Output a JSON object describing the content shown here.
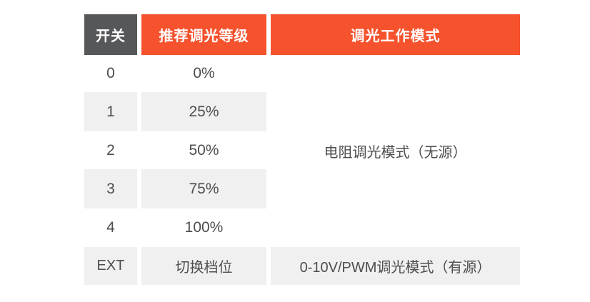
{
  "colors": {
    "header_dark": "#565759",
    "header_accent": "#F5522D",
    "row_alt": "#F0F0F0",
    "header_text": "#FFFFFF",
    "body_text": "#4D4D4D",
    "page_bg": "#FFFFFF"
  },
  "table": {
    "headers": {
      "switch": "开关",
      "level": "推荐调光等级",
      "mode": "调光工作模式"
    },
    "rows": [
      {
        "switch": "0",
        "level": "0%"
      },
      {
        "switch": "1",
        "level": "25%"
      },
      {
        "switch": "2",
        "level": "50%"
      },
      {
        "switch": "3",
        "level": "75%"
      },
      {
        "switch": "4",
        "level": "100%"
      }
    ],
    "merged_mode_label": "电阻调光模式（无源）",
    "ext_row": {
      "switch": "EXT",
      "level": "切换档位",
      "mode": "0-10V/PWM调光模式（有源）"
    }
  },
  "chart_data": {
    "type": "table",
    "title": "",
    "columns": [
      "开关",
      "推荐调光等级",
      "调光工作模式"
    ],
    "rows": [
      [
        "0",
        "0%",
        "电阻调光模式（无源）"
      ],
      [
        "1",
        "25%",
        "电阻调光模式（无源）"
      ],
      [
        "2",
        "50%",
        "电阻调光模式（无源）"
      ],
      [
        "3",
        "75%",
        "电阻调光模式（无源）"
      ],
      [
        "4",
        "100%",
        "电阻调光模式（无源）"
      ],
      [
        "EXT",
        "切换档位",
        "0-10V/PWM调光模式（有源）"
      ]
    ],
    "merged_cells": [
      {
        "column": "调光工作模式",
        "row_span": [
          0,
          4
        ],
        "value": "电阻调光模式（无源）"
      }
    ],
    "layout_hints": {
      "header_colors": [
        "#565759",
        "#F5522D",
        "#F5522D"
      ],
      "zebra_rows_gray": [
        1,
        3,
        5
      ],
      "grid": "off",
      "column_gutters": true
    }
  }
}
